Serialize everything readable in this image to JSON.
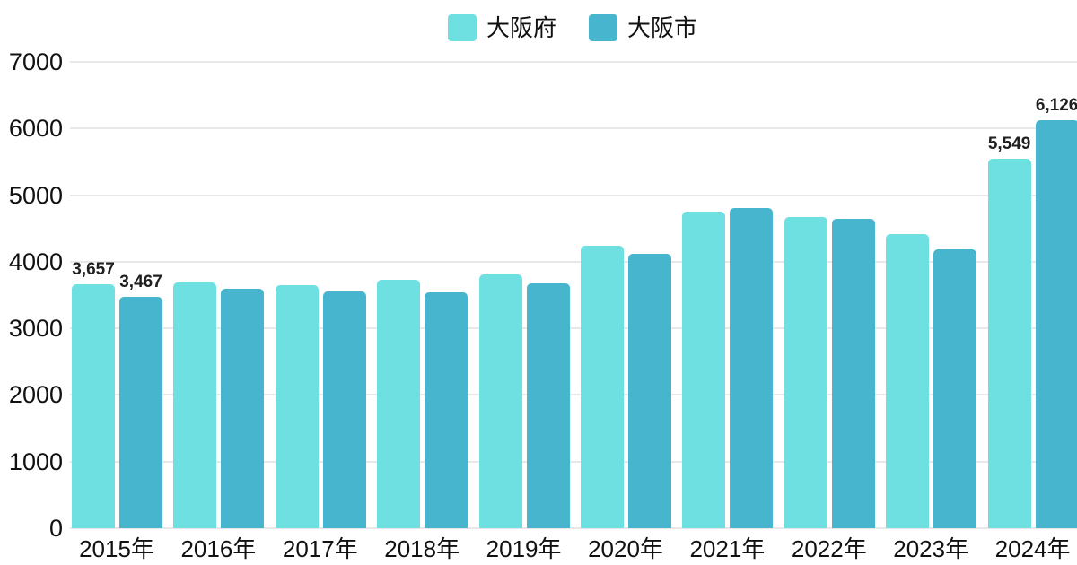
{
  "chart_data": {
    "type": "bar",
    "title": "",
    "xlabel": "",
    "ylabel": "",
    "categories": [
      "2015年",
      "2016年",
      "2017年",
      "2018年",
      "2019年",
      "2020年",
      "2021年",
      "2022年",
      "2023年",
      "2024年"
    ],
    "series": [
      {
        "name": "大阪府",
        "color": "#6FE0E2",
        "values": [
          3657,
          3695,
          3655,
          3730,
          3815,
          4245,
          4750,
          4670,
          4410,
          5549
        ]
      },
      {
        "name": "大阪市",
        "color": "#48B5CE",
        "values": [
          3467,
          3590,
          3560,
          3545,
          3680,
          4120,
          4800,
          4645,
          4190,
          6126
        ]
      }
    ],
    "data_labels": [
      {
        "series": 0,
        "index": 0,
        "text": "3,657"
      },
      {
        "series": 1,
        "index": 0,
        "text": "3,467"
      },
      {
        "series": 0,
        "index": 9,
        "text": "5,549"
      },
      {
        "series": 1,
        "index": 9,
        "text": "6,126"
      }
    ],
    "ylim": [
      0,
      7000
    ],
    "yticks": [
      0,
      1000,
      2000,
      3000,
      4000,
      5000,
      6000,
      7000
    ],
    "grid": true,
    "legend_position": "top-center"
  },
  "colors": {
    "background": "#FFFFFF",
    "gridline": "#E8E8E8",
    "axis_text": "#111111",
    "data_label_text": "#1F1F1F",
    "series_osaka_fu": "#6FE0E2",
    "series_osaka_shi": "#48B5CE"
  }
}
